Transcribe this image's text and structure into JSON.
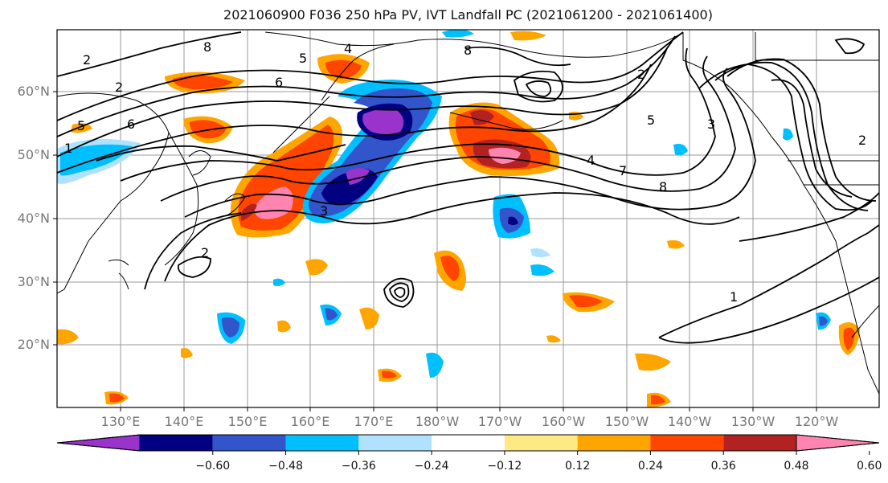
{
  "title": "2021060900 F036 250 hPa PV, IVT Landfall PC (2021061200 - 2021061400)",
  "lat_labels": [
    "60°N",
    "50°N",
    "40°N",
    "30°N",
    "20°N"
  ],
  "lon_labels": [
    "130°E",
    "140°E",
    "150°E",
    "160°E",
    "170°E",
    "180°W",
    "170°W",
    "160°W",
    "150°W",
    "140°W",
    "130°W",
    "120°W"
  ],
  "colorbar": {
    "colors": [
      "#9933cc",
      "#000080",
      "#3355cc",
      "#00bfff",
      "#b0e2ff",
      "#ffffff",
      "#ffe985",
      "#ffa500",
      "#ff4500",
      "#b22222",
      "#ff85b0"
    ],
    "labels": [
      "−0.60",
      "−0.48",
      "−0.36",
      "−0.24",
      "−0.12",
      "0.12",
      "0.24",
      "0.36",
      "0.48",
      "0.60"
    ]
  },
  "contour_labels": [
    "2",
    "8",
    "5",
    "4",
    "6",
    "2",
    "5",
    "6",
    "1",
    "8",
    "2",
    "3",
    "7",
    "8",
    "5",
    "4",
    "2",
    "3",
    "1",
    "2"
  ]
}
